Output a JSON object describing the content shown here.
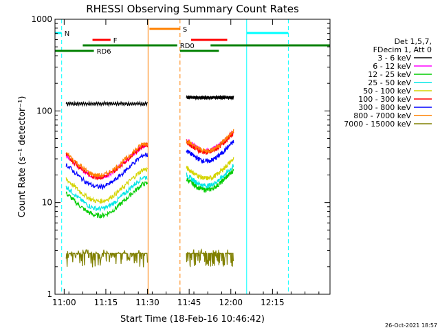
{
  "chart_data": {
    "type": "line",
    "title": "RHESSI Observing Summary Count Rates",
    "xlabel": "Start Time (18-Feb-16 10:46:42)",
    "ylabel": "Count Rate (s⁻¹ detector⁻¹)",
    "yscale": "log",
    "ylim": [
      1,
      1000
    ],
    "xlim_minutes": [
      10.0,
      109.0
    ],
    "x_ticks": [
      {
        "label": "11:00",
        "minutes": 13.3
      },
      {
        "label": "11:15",
        "minutes": 28.3
      },
      {
        "label": "11:30",
        "minutes": 43.3
      },
      {
        "label": "11:45",
        "minutes": 58.3
      },
      {
        "label": "12:00",
        "minutes": 73.3
      },
      {
        "label": "12:15",
        "minutes": 88.3
      }
    ],
    "y_ticks": [
      {
        "label": "1",
        "value": 1
      },
      {
        "label": "10",
        "value": 10
      },
      {
        "label": "100",
        "value": 100
      },
      {
        "label": "1000",
        "value": 1000
      }
    ],
    "legend_header": [
      "Det 1,5,7,",
      "FDecim 1, Att 0"
    ],
    "legend_position": "right",
    "series": [
      {
        "name": "3 - 6 keV",
        "color": "#000000",
        "a": 120,
        "b": 140
      },
      {
        "name": "6 - 12 keV",
        "color": "#ff00ff",
        "a": 42,
        "b": 48
      },
      {
        "name": "12 - 25 keV",
        "color": "#00cc00",
        "a": 16,
        "b": 18
      },
      {
        "name": "25 - 50 keV",
        "color": "#00e5e5",
        "a": 19,
        "b": 20
      },
      {
        "name": "50 - 100 keV",
        "color": "#d4d400",
        "a": 23,
        "b": 24
      },
      {
        "name": "100 - 300 keV",
        "color": "#ff0000",
        "a": 42,
        "b": 46
      },
      {
        "name": "300 - 800 keV",
        "color": "#0000ff",
        "a": 33,
        "b": 37
      },
      {
        "name": "800 - 7000 keV",
        "color": "#ff8000",
        "a": 44,
        "b": 48
      },
      {
        "name": "7000 - 15000 keV",
        "color": "#808000",
        "a": 2.8,
        "b": 2.8
      }
    ],
    "data_gaps_minutes": [
      [
        9.9,
        10.0
      ],
      [
        43.5,
        57.0
      ],
      [
        74.5,
        109.0
      ]
    ],
    "flags": [
      {
        "label": "N",
        "color": "#00ffff",
        "segments": [
          [
            10.0,
            12.4
          ],
          [
            79.0,
            94.0
          ]
        ]
      },
      {
        "label": "F",
        "color": "#ff0000",
        "segments": [
          [
            23.5,
            30.0
          ],
          [
            59.0,
            72.0
          ]
        ]
      },
      {
        "label": "S",
        "color": "#ff8000",
        "segments": [
          [
            44.0,
            55.0
          ]
        ]
      },
      {
        "label": "RD0",
        "color": "#008000",
        "segments": [
          [
            20.0,
            54.0
          ],
          [
            66.0,
            109.0
          ]
        ]
      },
      {
        "label": "RD6",
        "color": "#008000",
        "segments": [
          [
            10.0,
            24.0
          ],
          [
            55.0,
            69.0
          ]
        ]
      }
    ],
    "vertical_markers_minutes": [
      {
        "t": 10.0,
        "color": "#00ffff",
        "style": "solid"
      },
      {
        "t": 12.4,
        "color": "#00ffff",
        "style": "dashed"
      },
      {
        "t": 43.5,
        "color": "#ff8000",
        "style": "solid"
      },
      {
        "t": 55.0,
        "color": "#ff8000",
        "style": "dashed"
      },
      {
        "t": 79.0,
        "color": "#00ffff",
        "style": "solid"
      },
      {
        "t": 94.0,
        "color": "#00ffff",
        "style": "dashed"
      }
    ],
    "footer_date": "26-Oct-2021 18:57"
  }
}
